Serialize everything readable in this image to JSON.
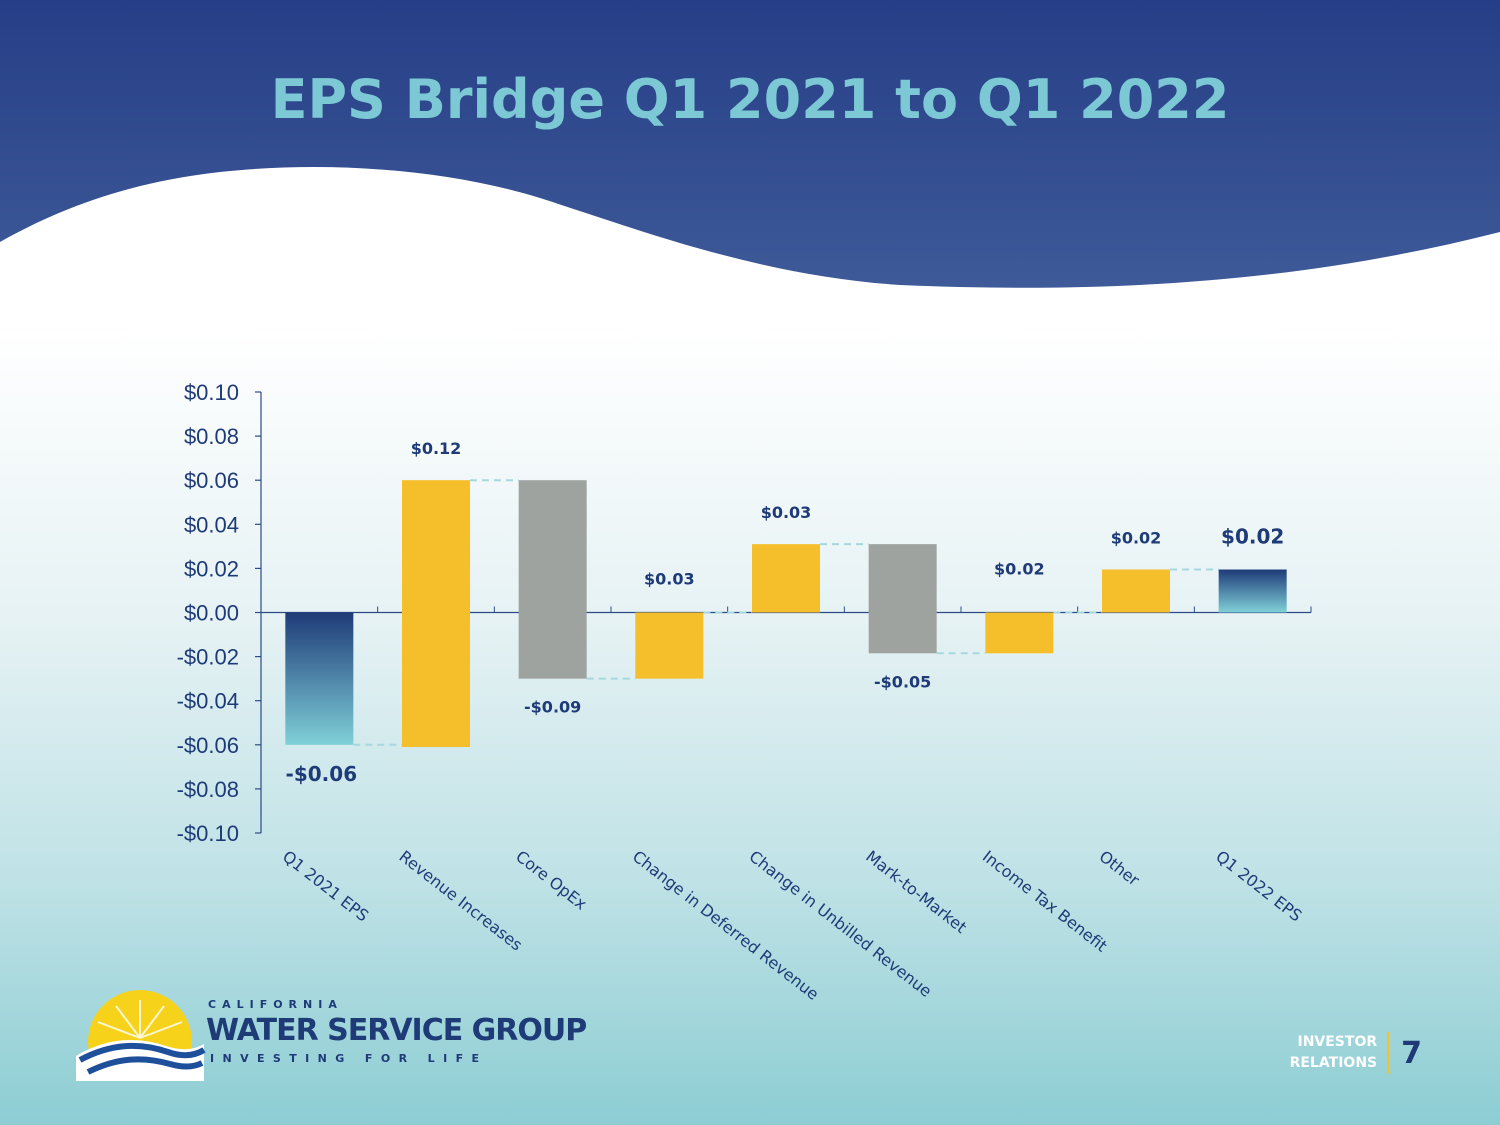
{
  "slide": {
    "title": "EPS Bridge Q1 2021 to Q1 2022",
    "page_number": "7",
    "footer_line1": "INVESTOR",
    "footer_line2": "RELATIONS"
  },
  "logo": {
    "line1": "CALIFORNIA",
    "line2": "WATER SERVICE GROUP",
    "line3": "INVESTING FOR LIFE"
  },
  "colors": {
    "banner": "#263e87",
    "title": "#7cc8d4",
    "increase": "#f4bf2a",
    "decrease_gray": "#9ea3a0",
    "total_top": "#1e3b78",
    "total_bottom": "#80d0d8",
    "text": "#1e3b78",
    "connector": "#a6d8e0"
  },
  "chart_data": {
    "type": "bar",
    "subtype": "waterfall",
    "title": "",
    "xlabel": "",
    "ylabel": "",
    "ylim": [
      -0.1,
      0.1
    ],
    "ytick_labels": [
      "$0.10",
      "$0.08",
      "$0.06",
      "$0.04",
      "$0.02",
      "$0.00",
      "-$0.02",
      "-$0.04",
      "-$0.06",
      "-$0.08",
      "-$0.10"
    ],
    "yticks": [
      0.1,
      0.08,
      0.06,
      0.04,
      0.02,
      0.0,
      -0.02,
      -0.04,
      -0.06,
      -0.08,
      -0.1
    ],
    "grid": false,
    "legend": "none",
    "categories": [
      "Q1 2021 EPS",
      "Revenue Increases",
      "Core OpEx",
      "Change in Deferred Revenue",
      "Change in Unbilled Revenue",
      "Mark-to-Market",
      "Income Tax Benefit",
      "Other",
      "Q1 2022 EPS"
    ],
    "bars": [
      {
        "category": "Q1 2021 EPS",
        "start": 0.0,
        "end": -0.06,
        "kind": "total",
        "label": "-$0.06"
      },
      {
        "category": "Revenue Increases",
        "start": -0.061,
        "end": 0.06,
        "kind": "increase",
        "label": "$0.12"
      },
      {
        "category": "Core OpEx",
        "start": 0.06,
        "end": -0.03,
        "kind": "decrease",
        "label": "-$0.09"
      },
      {
        "category": "Change in Deferred Revenue",
        "start": -0.03,
        "end": 0.0,
        "kind": "increase",
        "label": "$0.03"
      },
      {
        "category": "Change in Unbilled Revenue",
        "start": 0.0,
        "end": 0.031,
        "kind": "increase",
        "label": "$0.03"
      },
      {
        "category": "Mark-to-Market",
        "start": 0.031,
        "end": -0.0185,
        "kind": "decrease",
        "label": "-$0.05"
      },
      {
        "category": "Income Tax Benefit",
        "start": -0.0185,
        "end": 0.0,
        "kind": "increase",
        "label": "$0.02"
      },
      {
        "category": "Other",
        "start": 0.0,
        "end": 0.0195,
        "kind": "increase",
        "label": "$0.02"
      },
      {
        "category": "Q1 2022 EPS",
        "start": 0.0,
        "end": 0.0195,
        "kind": "total",
        "label": "$0.02"
      }
    ]
  }
}
